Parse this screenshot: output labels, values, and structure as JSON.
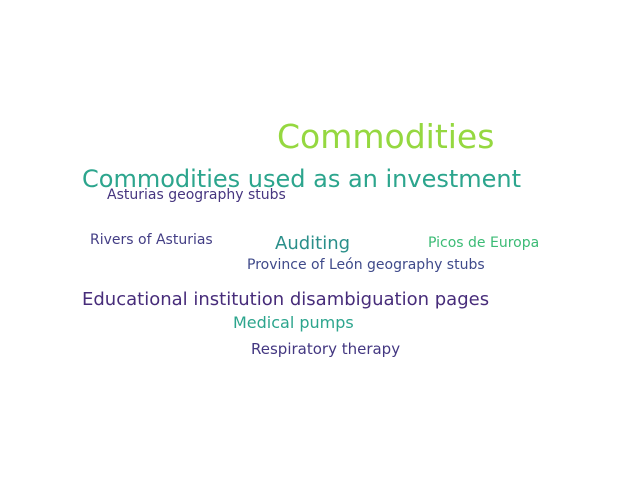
{
  "words": [
    {
      "text": "Commodities",
      "color": "#95d840"
    },
    {
      "text": "Commodities used as an investment",
      "color": "#2ca58d"
    },
    {
      "text": "Asturias geography stubs",
      "color": "#46357f"
    },
    {
      "text": "Rivers of Asturias",
      "color": "#433e85"
    },
    {
      "text": "Auditing",
      "color": "#2a8f8a"
    },
    {
      "text": "Picos de Europa",
      "color": "#3bbb75"
    },
    {
      "text": "Province of León geography stubs",
      "color": "#3f4a8a"
    },
    {
      "text": "Educational institution disambiguation pages",
      "color": "#472c7a"
    },
    {
      "text": "Medical pumps",
      "color": "#2ca58d"
    },
    {
      "text": "Respiratory therapy",
      "color": "#433781"
    }
  ]
}
